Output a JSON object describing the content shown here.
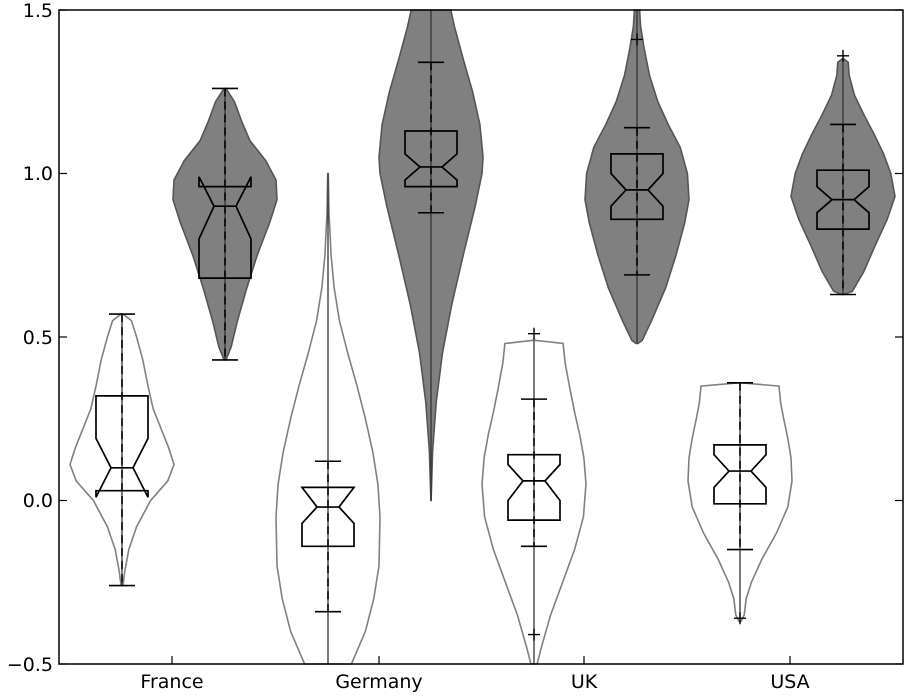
{
  "chart_data": {
    "type": "violin",
    "title": "",
    "xlabel": "",
    "ylabel": "",
    "ylim": [
      -0.5,
      1.5
    ],
    "grid": false,
    "legend": "none",
    "yticks": [
      "1.5",
      "1.0",
      "0.5",
      "0.0",
      "−0.5"
    ],
    "categories": [
      "France",
      "Germany",
      "UK",
      "USA"
    ],
    "colors": {
      "light_fill": "#ffffff",
      "light_edge": "#808080",
      "dark_fill": "#808080",
      "dark_edge": "#555555",
      "box": "#000000"
    },
    "series": [
      {
        "fill": "light",
        "groups": [
          {
            "category": "France",
            "min": -0.26,
            "q1": 0.03,
            "median": 0.1,
            "q3": 0.32,
            "max": 0.57,
            "notch": [
              0.01,
              0.19
            ],
            "outliers": []
          },
          {
            "category": "Germany",
            "min": -0.34,
            "q1": -0.14,
            "median": -0.02,
            "q3": 0.04,
            "max": 0.12,
            "notch": [
              -0.07,
              0.04
            ],
            "outliers": []
          },
          {
            "category": "UK",
            "min": -0.14,
            "q1": -0.06,
            "median": 0.06,
            "q3": 0.14,
            "max": 0.31,
            "notch": [
              0.0,
              0.11
            ],
            "outliers": [
              -0.41,
              0.51
            ]
          },
          {
            "category": "USA",
            "min": -0.15,
            "q1": -0.01,
            "median": 0.09,
            "q3": 0.17,
            "max": 0.36,
            "notch": [
              0.04,
              0.14
            ],
            "outliers": [
              -0.36
            ]
          }
        ]
      },
      {
        "fill": "dark",
        "groups": [
          {
            "category": "France",
            "min": 0.43,
            "q1": 0.68,
            "median": 0.9,
            "q3": 0.96,
            "max": 1.26,
            "notch": [
              0.8,
              0.99
            ],
            "outliers": []
          },
          {
            "category": "Germany",
            "min": 0.88,
            "q1": 0.96,
            "median": 1.02,
            "q3": 1.13,
            "max": 1.34,
            "notch": [
              0.98,
              1.06
            ],
            "outliers": []
          },
          {
            "category": "UK",
            "min": 0.69,
            "q1": 0.86,
            "median": 0.95,
            "q3": 1.06,
            "max": 1.14,
            "notch": [
              0.9,
              1.0
            ],
            "outliers": [
              1.41
            ]
          },
          {
            "category": "USA",
            "min": 0.63,
            "q1": 0.83,
            "median": 0.92,
            "q3": 1.01,
            "max": 1.15,
            "notch": [
              0.88,
              0.96
            ],
            "outliers": [
              1.36
            ]
          }
        ]
      }
    ]
  }
}
